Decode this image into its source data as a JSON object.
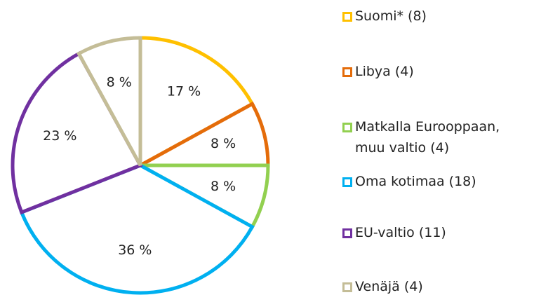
{
  "chart_data": {
    "type": "pie",
    "categories": [
      "Suomi* (8)",
      "Libya (4)",
      "Matkalla Eurooppaan, muu valtio (4)",
      "Oma kotimaa (18)",
      "EU-valtio (11)",
      "Venäjä (4)"
    ],
    "values": [
      17,
      8,
      8,
      36,
      23,
      8
    ],
    "value_labels": [
      "17 %",
      "8 %",
      "8 %",
      "36 %",
      "23 %",
      "8 %"
    ],
    "colors": [
      "#ffc000",
      "#e46c0a",
      "#92d050",
      "#00b0f0",
      "#7030a0",
      "#c4bd97"
    ],
    "legend": "right"
  }
}
